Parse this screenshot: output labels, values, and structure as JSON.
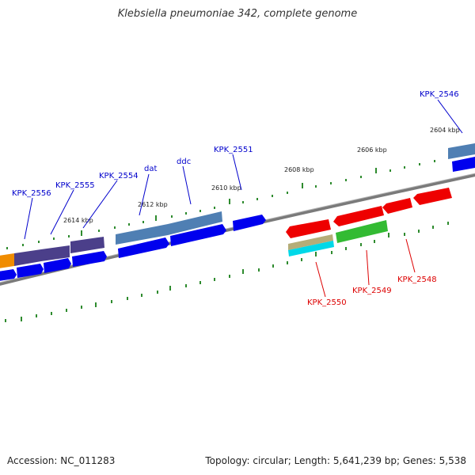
{
  "title": "Klebsiella pneumoniae 342, complete genome",
  "footer": {
    "accession": "Accession: NC_011283",
    "summary": "Topology: circular; Length: 5,641,239 bp; Genes: 5,538"
  },
  "colors": {
    "backbone": "#808080",
    "tick": "#2e8b2e",
    "forward_label": "#0000cc",
    "reverse_label": "#dd0000",
    "gene_forward": "#0000ee",
    "gene_reverse": "#ee0000",
    "cds_steel": "#4f7fb3",
    "cds_purple": "#4b3f8a",
    "cds_orange": "#f08c00",
    "cds_green": "#33bb33",
    "cds_khaki": "#b5ad78",
    "cds_cyan": "#00d8e8"
  },
  "scale_labels": [
    "2604 kbp",
    "2606 kbp",
    "2608 kbp",
    "2610 kbp",
    "2612 kbp",
    "2614 kbp"
  ],
  "forward_gene_labels": [
    "KPK_2546",
    "KPK_2551",
    "ddc",
    "dat",
    "KPK_2554",
    "KPK_2555",
    "KPK_2556"
  ],
  "reverse_gene_labels": [
    "KPK_2548",
    "KPK_2549",
    "KPK_2550"
  ]
}
